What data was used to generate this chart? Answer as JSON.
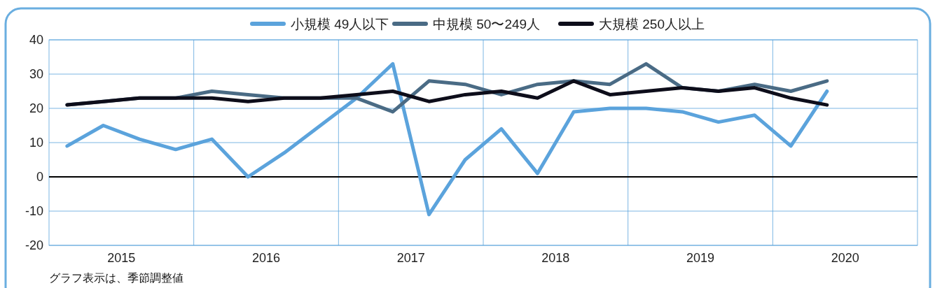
{
  "chart_data": {
    "type": "line",
    "legend": "top",
    "grid": true,
    "marker": "none",
    "line_style": "solid",
    "x": [
      2015.125,
      2015.375,
      2015.625,
      2015.875,
      2016.125,
      2016.375,
      2016.625,
      2016.875,
      2017.125,
      2017.375,
      2017.625,
      2017.875,
      2018.125,
      2018.375,
      2018.625,
      2018.875,
      2019.125,
      2019.375,
      2019.625,
      2019.875,
      2020.125,
      2020.375
    ],
    "xlim": [
      2015,
      2021
    ],
    "xticks": [
      {
        "value": 2015.5,
        "label": "2015"
      },
      {
        "value": 2016,
        "label": null
      },
      {
        "value": 2016.5,
        "label": "2016"
      },
      {
        "value": 2017,
        "label": null
      },
      {
        "value": 2017.5,
        "label": "2017"
      },
      {
        "value": 2018,
        "label": null
      },
      {
        "value": 2018.5,
        "label": "2018"
      },
      {
        "value": 2019,
        "label": null
      },
      {
        "value": 2019.5,
        "label": "2019"
      },
      {
        "value": 2020,
        "label": null
      },
      {
        "value": 2020.5,
        "label": "2020"
      }
    ],
    "ylim": [
      -20,
      40
    ],
    "yticks": [
      -20,
      -10,
      0,
      10,
      20,
      30,
      40
    ],
    "ref_lines": [
      {
        "axis": "y",
        "value": 0,
        "color": "#000000"
      }
    ],
    "series": [
      {
        "name": "小規模 49人以下",
        "color": "#5ba3dc",
        "values": [
          9,
          15,
          11,
          8,
          11,
          0,
          7,
          15,
          23,
          33,
          -11,
          5,
          14,
          1,
          19,
          20,
          20,
          19,
          16,
          18,
          9,
          25
        ]
      },
      {
        "name": "中規模 50〜249人",
        "color": "#4a6b85",
        "values": [
          21,
          22,
          23,
          23,
          25,
          24,
          23,
          23,
          23,
          19,
          28,
          27,
          24,
          27,
          28,
          27,
          33,
          26,
          25,
          27,
          25,
          28
        ]
      },
      {
        "name": "大規模 250人以上",
        "color": "#0d0d1a",
        "values": [
          21,
          22,
          23,
          23,
          23,
          22,
          23,
          23,
          24,
          25,
          22,
          24,
          25,
          23,
          28,
          24,
          25,
          26,
          25,
          26,
          23,
          21
        ]
      }
    ],
    "annotations": [
      "グラフ表示は、季節調整値"
    ]
  }
}
